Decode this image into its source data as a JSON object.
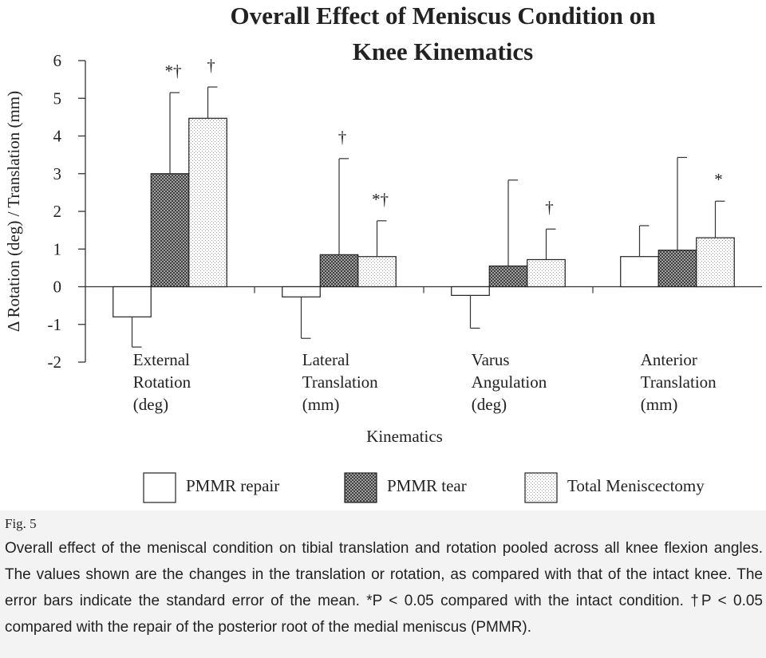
{
  "chart_data": {
    "type": "bar",
    "title": [
      "Overall Effect of Meniscus Condition on",
      "Knee Kinematics"
    ],
    "y_label": "Δ Rotation (deg) / Translation (mm)",
    "x_label": "Kinematics",
    "categories": [
      [
        "External",
        "Rotation",
        "(deg)"
      ],
      [
        "Lateral",
        "Translation",
        "(mm)"
      ],
      [
        "Varus",
        "Angulation",
        "(deg)"
      ],
      [
        "Anterior",
        "Translation",
        "(mm)"
      ]
    ],
    "series": [
      {
        "name": "PMMR repair",
        "color": "#ffffff",
        "pattern": "none",
        "values": [
          -0.8,
          -0.27,
          -0.23,
          0.8
        ],
        "errors": [
          0.8,
          1.1,
          0.87,
          0.82
        ],
        "significance": [
          null,
          null,
          null,
          null
        ]
      },
      {
        "name": "PMMR tear",
        "color": "#3a3a3a",
        "pattern": "crosshatch",
        "values": [
          3.0,
          0.85,
          0.55,
          0.97
        ],
        "errors": [
          2.15,
          2.55,
          2.28,
          2.46
        ],
        "significance": [
          "*†",
          "†",
          null,
          null
        ]
      },
      {
        "name": "Total Meniscectomy",
        "color": "#9a9a9a",
        "pattern": "dots",
        "values": [
          4.47,
          0.8,
          0.72,
          1.3
        ],
        "errors": [
          0.83,
          0.95,
          0.81,
          0.97
        ],
        "significance": [
          "†",
          "*†",
          "†",
          "*"
        ]
      }
    ],
    "ylim": [
      -2,
      6
    ],
    "yticks": [
      -2,
      -1,
      0,
      1,
      2,
      3,
      4,
      5,
      6
    ],
    "grid": false,
    "legend": "bottom"
  },
  "caption": {
    "label": "Fig. 5",
    "text": "Overall effect of the meniscal condition on tibial translation and rotation pooled across all knee flexion angles. The values shown are the changes in the translation or rotation, as compared with that of the intact knee. The error bars indicate the standard error of the mean. *P < 0.05 compared with the intact condition. †P < 0.05 compared with the repair of the posterior root of the medial meniscus (PMMR)."
  }
}
